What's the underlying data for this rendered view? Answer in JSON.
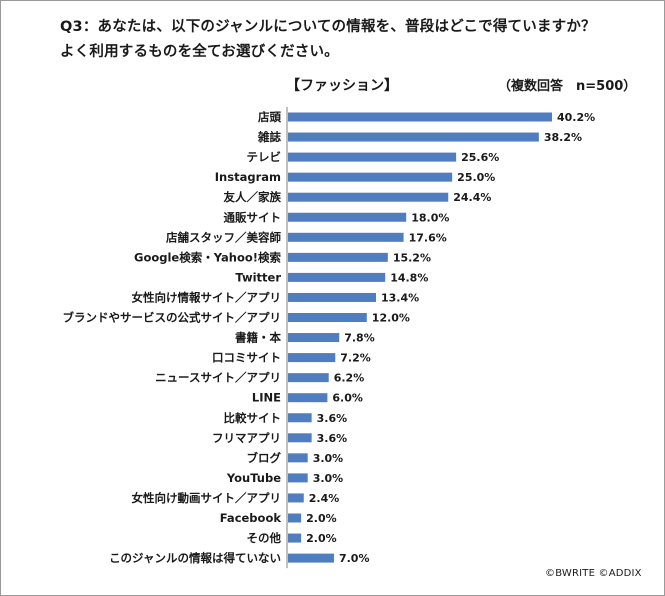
{
  "title_line1": "Q3：あなたは、以下のジャンルについての情報を、普段はどこで得ていますか？",
  "title_line2": "よく利用するものを全てお選びください。",
  "credit": "©BWRITE ©ADDIX",
  "chart_data": {
    "type": "bar",
    "orientation": "horizontal",
    "subtitle": "【ファッション】",
    "note": "（複数回答　n=500）",
    "bar_color": "#4f7dbf",
    "value_suffix": "%",
    "grid": false,
    "legend": "none",
    "xlim": [
      0,
      45
    ],
    "categories": [
      "店頭",
      "雑誌",
      "テレビ",
      "Instagram",
      "友人／家族",
      "通販サイト",
      "店舗スタッフ／美容師",
      "Google検索・Yahoo!検索",
      "Twitter",
      "女性向け情報サイト／アプリ",
      "ブランドやサービスの公式サイト／アプリ",
      "書籍・本",
      "口コミサイト",
      "ニュースサイト／アプリ",
      "LINE",
      "比較サイト",
      "フリマアプリ",
      "ブログ",
      "YouTube",
      "女性向け動画サイト／アプリ",
      "Facebook",
      "その他",
      "このジャンルの情報は得ていない"
    ],
    "values": [
      40.2,
      38.2,
      25.6,
      25.0,
      24.4,
      18.0,
      17.6,
      15.2,
      14.8,
      13.4,
      12.0,
      7.8,
      7.2,
      6.2,
      6.0,
      3.6,
      3.6,
      3.0,
      3.0,
      2.4,
      2.0,
      2.0,
      7.0
    ]
  }
}
